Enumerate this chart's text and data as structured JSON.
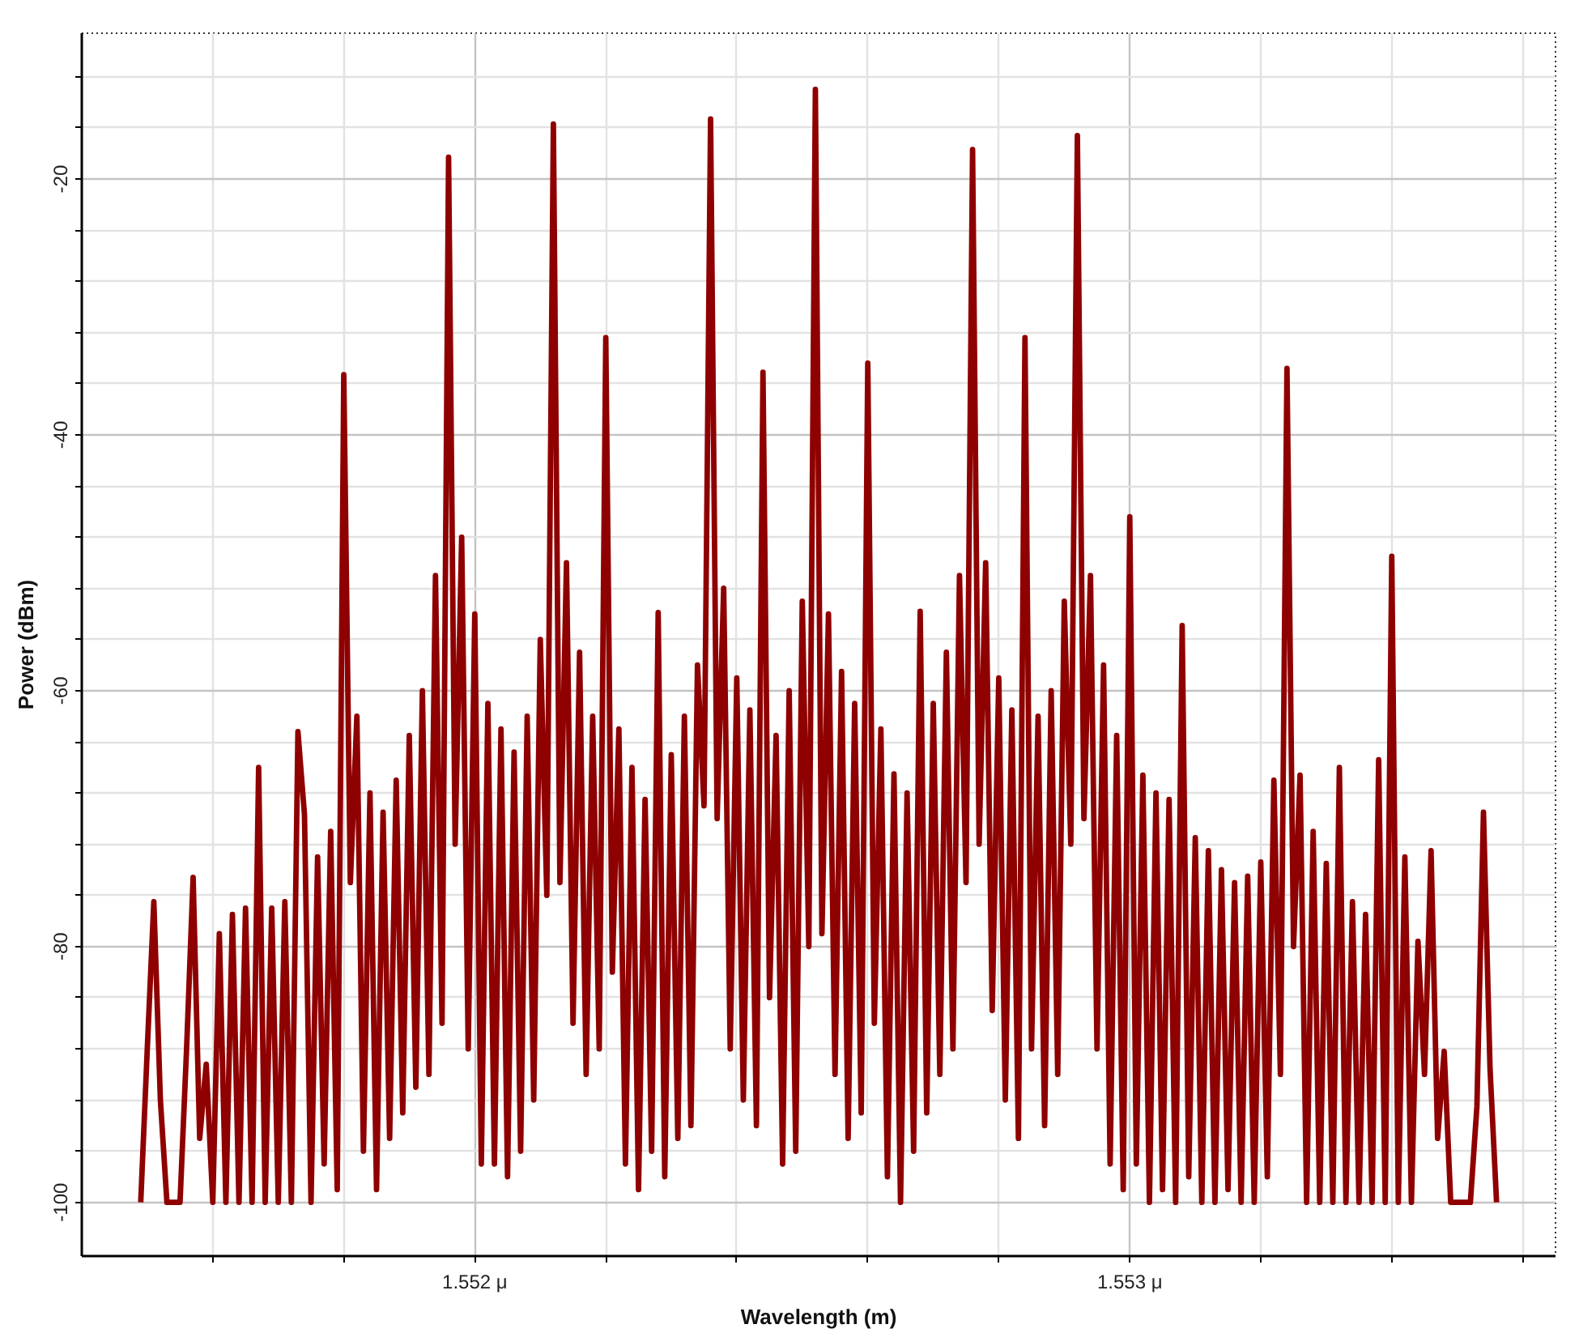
{
  "chart_data": {
    "type": "line",
    "xlabel": "Wavelength (m)",
    "ylabel": "Power (dBm)",
    "color": "#8f0000",
    "grid": true,
    "xlim": [
      1.5514,
      1.55365
    ],
    "ylim": [
      -104.2,
      -8.6
    ],
    "xticks": [
      {
        "value": 1.5516,
        "label": null
      },
      {
        "value": 1.5518,
        "label": null
      },
      {
        "value": 1.552,
        "label": "1.552 μ"
      },
      {
        "value": 1.5522,
        "label": null
      },
      {
        "value": 1.5524,
        "label": null
      },
      {
        "value": 1.5526,
        "label": null
      },
      {
        "value": 1.5528,
        "label": null
      },
      {
        "value": 1.553,
        "label": "1.553 μ"
      },
      {
        "value": 1.5532,
        "label": null
      },
      {
        "value": 1.5534,
        "label": null
      },
      {
        "value": 1.5536,
        "label": null
      }
    ],
    "yticks": [
      {
        "value": -12,
        "label": null
      },
      {
        "value": -16,
        "label": null
      },
      -20,
      {
        "value": -24,
        "label": null
      },
      {
        "value": -28,
        "label": null
      },
      {
        "value": -32,
        "label": null
      },
      {
        "value": -36,
        "label": null
      },
      -40,
      {
        "value": -44,
        "label": null
      },
      {
        "value": -48,
        "label": null
      },
      {
        "value": -52,
        "label": null
      },
      {
        "value": -56,
        "label": null
      },
      -60,
      {
        "value": -64,
        "label": null
      },
      {
        "value": -68,
        "label": null
      },
      {
        "value": -72,
        "label": null
      },
      {
        "value": -76,
        "label": null
      },
      -80,
      {
        "value": -84,
        "label": null
      },
      {
        "value": -88,
        "label": null
      },
      {
        "value": -92,
        "label": null
      },
      {
        "value": -96,
        "label": null
      },
      -100
    ],
    "x": [
      1.55149,
      1.5515,
      1.55151,
      1.55152,
      1.55153,
      1.55154,
      1.55155,
      1.55156,
      1.55157,
      1.55158,
      1.55159,
      1.5516,
      1.55161,
      1.55162,
      1.55163,
      1.55164,
      1.55165,
      1.55166,
      1.55167,
      1.55168,
      1.55169,
      1.5517,
      1.55171,
      1.55172,
      1.55173,
      1.55174,
      1.55175,
      1.55176,
      1.55177,
      1.55178,
      1.55179,
      1.5518,
      1.55181,
      1.55182,
      1.55183,
      1.55184,
      1.55185,
      1.55186,
      1.55187,
      1.55188,
      1.55189,
      1.5519,
      1.55191,
      1.55192,
      1.55193,
      1.55194,
      1.55195,
      1.55196,
      1.55197,
      1.55198,
      1.55199,
      1.552,
      1.55201,
      1.55202,
      1.55203,
      1.55204,
      1.55205,
      1.55206,
      1.55207,
      1.55208,
      1.55209,
      1.5521,
      1.55211,
      1.55212,
      1.55213,
      1.55214,
      1.55215,
      1.55216,
      1.55217,
      1.55218,
      1.55219,
      1.5522,
      1.55221,
      1.55222,
      1.55223,
      1.55224,
      1.55225,
      1.55226,
      1.55227,
      1.55228,
      1.55229,
      1.5523,
      1.55231,
      1.55232,
      1.55233,
      1.55234,
      1.55235,
      1.55236,
      1.55237,
      1.55238,
      1.55239,
      1.5524,
      1.55241,
      1.55242,
      1.55243,
      1.55244,
      1.55245,
      1.55246,
      1.55247,
      1.55248,
      1.55249,
      1.5525,
      1.55251,
      1.55252,
      1.55253,
      1.55254,
      1.55255,
      1.55256,
      1.55257,
      1.55258,
      1.55259,
      1.5526,
      1.55261,
      1.55262,
      1.55263,
      1.55264,
      1.55265,
      1.55266,
      1.55267,
      1.55268,
      1.55269,
      1.5527,
      1.55271,
      1.55272,
      1.55273,
      1.55274,
      1.55275,
      1.55276,
      1.55277,
      1.55278,
      1.55279,
      1.5528,
      1.55281,
      1.55282,
      1.55283,
      1.55284,
      1.55285,
      1.55286,
      1.55287,
      1.55288,
      1.55289,
      1.5529,
      1.55291,
      1.55292,
      1.55293,
      1.55294,
      1.55295,
      1.55296,
      1.55297,
      1.55298,
      1.55299,
      1.553,
      1.55301,
      1.55302,
      1.55303,
      1.55304,
      1.55305,
      1.55306,
      1.55307,
      1.55308,
      1.55309,
      1.5531,
      1.55311,
      1.55312,
      1.55313,
      1.55314,
      1.55315,
      1.55316,
      1.55317,
      1.55318,
      1.55319,
      1.5532,
      1.55321,
      1.55322,
      1.55323,
      1.55324,
      1.55325,
      1.55326,
      1.55327,
      1.55328,
      1.55329,
      1.5533,
      1.55331,
      1.55332,
      1.55333,
      1.55334,
      1.55335,
      1.55336,
      1.55337,
      1.55338,
      1.55339,
      1.5534,
      1.55341,
      1.55342,
      1.55343,
      1.55344,
      1.55345,
      1.55346,
      1.55347,
      1.55348,
      1.55349,
      1.5535,
      1.55351,
      1.55352,
      1.55353,
      1.55354,
      1.55355,
      1.55356
    ],
    "values": [
      -100,
      -88,
      -76.5,
      -92,
      -100,
      -100,
      -100,
      -88,
      -74.6,
      -95,
      -89.2,
      -100,
      -79,
      -100,
      -77.5,
      -100,
      -77,
      -100,
      -66,
      -100,
      -77,
      -100,
      -76.5,
      -100,
      -63.2,
      -69.7,
      -100,
      -73,
      -97,
      -71,
      -99,
      -35.3,
      -75,
      -62,
      -96,
      -68,
      -99,
      -69.5,
      -95,
      -67,
      -93,
      -63.5,
      -91,
      -60,
      -90,
      -51,
      -86,
      -18.3,
      -72,
      -48,
      -88,
      -54,
      -97,
      -61,
      -97,
      -63,
      -98,
      -64.8,
      -96,
      -62,
      -92,
      -56,
      -76,
      -15.7,
      -75,
      -50,
      -86,
      -57,
      -90,
      -62,
      -88,
      -32.4,
      -82,
      -63,
      -97,
      -66,
      -99,
      -68.5,
      -96,
      -53.9,
      -98,
      -65,
      -95,
      -62,
      -94,
      -58,
      -69,
      -15.3,
      -70,
      -52,
      -88,
      -59,
      -92,
      -61.5,
      -94,
      -35.1,
      -84,
      -63.5,
      -97,
      -60,
      -96,
      -53,
      -80,
      -13,
      -79,
      -54,
      -90,
      -58.5,
      -95,
      -61,
      -93,
      -34.4,
      -86,
      -63,
      -98,
      -66.5,
      -100,
      -68,
      -96,
      -53.8,
      -93,
      -61,
      -90,
      -57,
      -88,
      -51,
      -75,
      -17.7,
      -72,
      -50,
      -85,
      -59,
      -92,
      -61.5,
      -95,
      -32.4,
      -88,
      -62,
      -94,
      -60,
      -90,
      -53,
      -72,
      -16.6,
      -70,
      -51,
      -88,
      -58,
      -97,
      -63.5,
      -99,
      -46.4,
      -97,
      -66.6,
      -100,
      -68,
      -99,
      -68.5,
      -100,
      -54.9,
      -98,
      -71.5,
      -100,
      -72.5,
      -100,
      -74,
      -99,
      -75,
      -100,
      -74.5,
      -100,
      -73.4,
      -98,
      -67,
      -90,
      -34.8,
      -80,
      -66.6,
      -100,
      -71,
      -100,
      -73.5,
      -100,
      -66,
      -100,
      -76.5,
      -100,
      -77.5,
      -100,
      -65.4,
      -100,
      -49.5,
      -100,
      -73,
      -100,
      -79.6,
      -90,
      -72.5,
      -95,
      -88.2,
      -100,
      -100,
      -100,
      -100,
      -92.5,
      -69.5,
      -89.5,
      -100
    ]
  }
}
